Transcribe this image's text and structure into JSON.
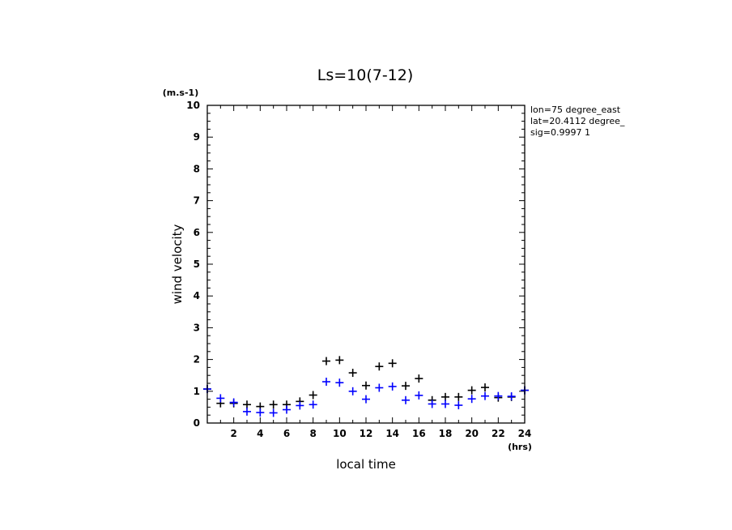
{
  "chart_data": {
    "type": "scatter",
    "title": "Ls=10(7-12)",
    "xlabel": "local time",
    "ylabel": "wind velocity",
    "x_unit": "(hrs)",
    "y_unit": "(m.s-1)",
    "xlim": [
      0,
      24
    ],
    "ylim": [
      0,
      10
    ],
    "x_tick_labels": [
      "2",
      "4",
      "6",
      "8",
      "10",
      "12",
      "14",
      "16",
      "18",
      "20",
      "22",
      "24"
    ],
    "y_tick_labels": [
      "0",
      "1",
      "2",
      "3",
      "4",
      "5",
      "6",
      "7",
      "8",
      "9",
      "10"
    ],
    "info_lines": [
      "lon=75 degree_east",
      "lat=20.4112 degree_",
      "sig=0.9997 1"
    ],
    "grid": false,
    "series": [
      {
        "color": "#000000",
        "marker": "plus",
        "x": [
          0,
          1,
          2,
          3,
          4,
          5,
          6,
          7,
          8,
          9,
          10,
          11,
          12,
          13,
          14,
          15,
          16,
          17,
          18,
          19,
          20,
          21,
          22,
          23,
          24
        ],
        "y": [
          1.07,
          0.62,
          0.62,
          0.58,
          0.52,
          0.58,
          0.58,
          0.68,
          0.88,
          1.95,
          1.98,
          1.58,
          1.18,
          1.78,
          1.88,
          1.17,
          1.4,
          0.72,
          0.82,
          0.82,
          1.03,
          1.12,
          0.8,
          0.82,
          1.03
        ]
      },
      {
        "color": "#0000ff",
        "marker": "plus",
        "x": [
          0,
          1,
          2,
          3,
          4,
          5,
          6,
          7,
          8,
          9,
          10,
          11,
          12,
          13,
          14,
          15,
          16,
          17,
          18,
          19,
          20,
          21,
          22,
          23,
          24
        ],
        "y": [
          1.07,
          0.78,
          0.65,
          0.36,
          0.33,
          0.32,
          0.42,
          0.55,
          0.58,
          1.3,
          1.27,
          1.0,
          0.75,
          1.11,
          1.15,
          0.72,
          0.87,
          0.6,
          0.6,
          0.56,
          0.76,
          0.85,
          0.85,
          0.84,
          1.03
        ]
      }
    ]
  }
}
